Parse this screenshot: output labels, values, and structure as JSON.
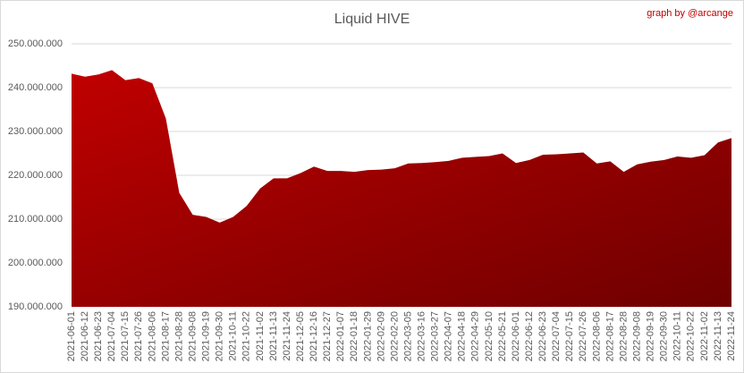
{
  "chart_data": {
    "type": "area",
    "title": "Liquid HIVE",
    "annotation": "graph by @arcange",
    "categories": [
      "2021-06-01",
      "2021-06-12",
      "2021-06-23",
      "2021-07-04",
      "2021-07-15",
      "2021-07-26",
      "2021-08-06",
      "2021-08-17",
      "2021-08-28",
      "2021-09-08",
      "2021-09-19",
      "2021-09-30",
      "2021-10-11",
      "2021-10-22",
      "2021-11-02",
      "2021-11-13",
      "2021-11-24",
      "2021-12-05",
      "2021-12-16",
      "2021-12-27",
      "2022-01-07",
      "2022-01-18",
      "2022-01-29",
      "2022-02-09",
      "2022-02-20",
      "2022-03-05",
      "2022-03-16",
      "2022-03-27",
      "2022-04-07",
      "2022-04-18",
      "2022-04-29",
      "2022-05-10",
      "2022-05-21",
      "2022-06-01",
      "2022-06-12",
      "2022-06-23",
      "2022-07-04",
      "2022-07-15",
      "2022-07-26",
      "2022-08-06",
      "2022-08-17",
      "2022-08-28",
      "2022-09-08",
      "2022-09-19",
      "2022-09-30",
      "2022-10-11",
      "2022-10-22",
      "2022-11-02",
      "2022-11-13",
      "2022-11-24"
    ],
    "values": [
      243200000,
      242500000,
      243000000,
      244000000,
      241700000,
      242200000,
      241000000,
      233000000,
      216000000,
      211000000,
      210500000,
      209200000,
      210500000,
      213000000,
      217000000,
      219300000,
      219300000,
      220500000,
      222000000,
      221000000,
      221000000,
      220800000,
      221200000,
      221300000,
      221600000,
      222700000,
      222800000,
      223000000,
      223300000,
      224000000,
      224200000,
      224400000,
      225000000,
      222800000,
      223500000,
      224700000,
      224800000,
      225000000,
      225200000,
      222700000,
      223200000,
      220800000,
      222500000,
      223100000,
      223500000,
      224300000,
      224000000,
      224600000,
      227500000,
      228500000
    ],
    "colors": [
      "#c00000",
      "#6e0000"
    ],
    "ylim": [
      190000000,
      250000000
    ],
    "yticks": [
      {
        "value": 190000000,
        "label": "190.000.000"
      },
      {
        "value": 200000000,
        "label": "200.000.000"
      },
      {
        "value": 210000000,
        "label": "210.000.000"
      },
      {
        "value": 220000000,
        "label": "220.000.000"
      },
      {
        "value": 230000000,
        "label": "230.000.000"
      },
      {
        "value": 240000000,
        "label": "240.000.000"
      },
      {
        "value": 250000000,
        "label": "250.000.000"
      }
    ],
    "grid": true
  }
}
